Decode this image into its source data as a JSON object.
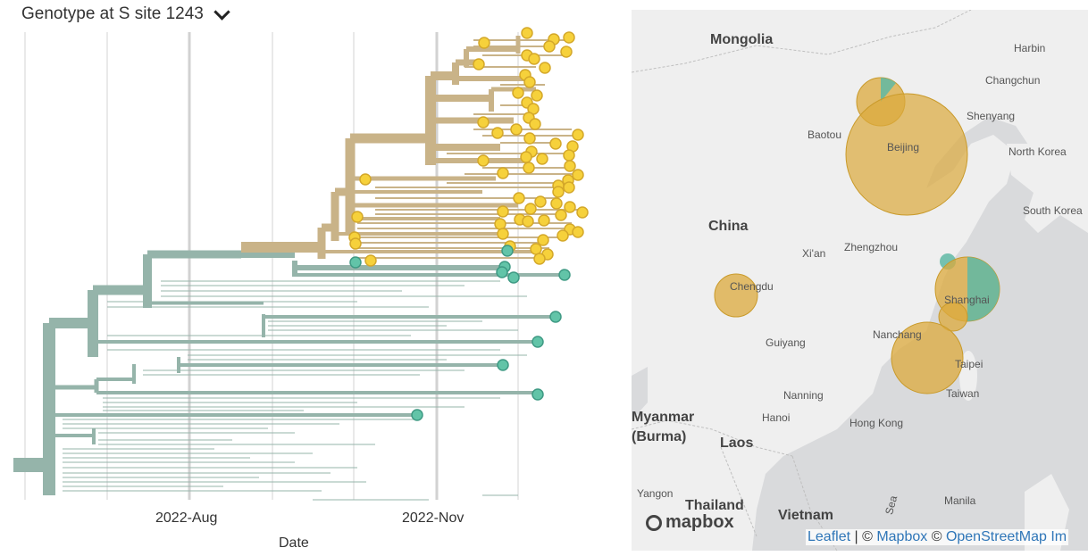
{
  "color_by": {
    "label": "Genotype at S site 1243"
  },
  "tree": {
    "axis_title": "Date",
    "ticks": [
      "2022-Aug",
      "2022-Nov"
    ],
    "colors": {
      "branch_base": "#95b4aa",
      "branch_clade": "#c9b388",
      "tip_yellow": "#f6d13b",
      "tip_teal": "#62c4a8",
      "grid": "#e2e2e2",
      "grid_major": "#d2d2d2"
    }
  },
  "map": {
    "places": {
      "mongolia": "Mongolia",
      "harbin": "Harbin",
      "changchun": "Changchun",
      "shenyang": "Shenyang",
      "baotou": "Baotou",
      "beijing": "Beijing",
      "north_korea": "North Korea",
      "south_korea": "South Korea",
      "china": "China",
      "xian": "Xi'an",
      "zhengzhou": "Zhengzhou",
      "chengdu": "Chengdu",
      "shanghai": "Shanghai",
      "guiyang": "Guiyang",
      "nanchang": "Nanchang",
      "taipei": "Taipei",
      "taiwan": "Taiwan",
      "nanning": "Nanning",
      "hanoi": "Hanoi",
      "hong_kong": "Hong Kong",
      "myanmar": "Myanmar",
      "burma": "(Burma)",
      "laos": "Laos",
      "yangon": "Yangon",
      "thailand": "Thailand",
      "vietnam": "Vietnam",
      "manila": "Manila",
      "sea": "Sea"
    },
    "logo": "mapbox",
    "attribution": {
      "leaflet": "Leaflet",
      "sep1": " | © ",
      "mapbox": "Mapbox",
      "sep2": " © ",
      "osm": "OpenStreetMap",
      "extra": "Im"
    },
    "colors": {
      "water": "#d9dadc",
      "land": "#efefef",
      "yellow": "#dcaa3c",
      "teal": "#5fb8a5"
    }
  }
}
